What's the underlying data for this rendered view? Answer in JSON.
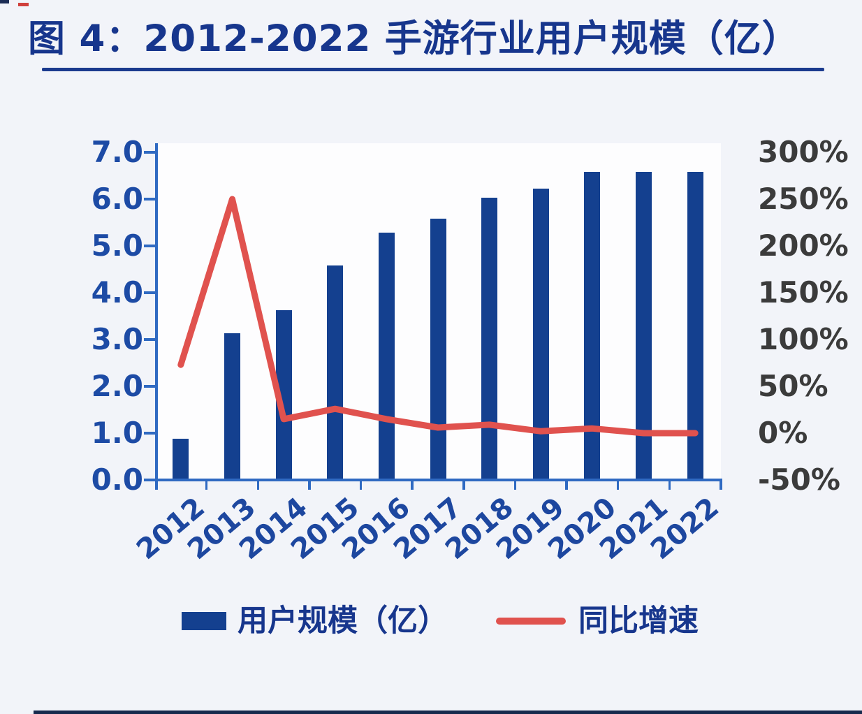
{
  "title": "图 4：2012-2022 手游行业用户规模（亿）",
  "colors": {
    "title_navy": "#17368d",
    "bar_blue": "#14408f",
    "line_red": "#e0524e",
    "axis_blue": "#2f6ac2",
    "left_label_blue": "#1d4ba5",
    "right_label_gray": "#3b3b3b",
    "page_bg": "#f2f4f9",
    "footer_bar_navy": "#162a4d"
  },
  "chart_data": {
    "type": "bar",
    "subtype": "bar-line-combo",
    "title": "图 4：2012-2022 手游行业用户规模（亿）",
    "categories": [
      "2012",
      "2013",
      "2014",
      "2015",
      "2016",
      "2017",
      "2018",
      "2019",
      "2020",
      "2021",
      "2022"
    ],
    "series": [
      {
        "name": "用户规模（亿）",
        "type": "bar",
        "axis": "left",
        "values": [
          0.85,
          3.1,
          3.6,
          4.55,
          5.25,
          5.55,
          6.0,
          6.2,
          6.55,
          6.55,
          6.55
        ]
      },
      {
        "name": "同比增速",
        "type": "line",
        "axis": "right",
        "unit": "%",
        "values": [
          73,
          250,
          15,
          26,
          15,
          6,
          9,
          2,
          5,
          0,
          0
        ]
      }
    ],
    "left_axis": {
      "min": 0,
      "max": 7,
      "ticks": [
        "0.0",
        "1.0",
        "2.0",
        "3.0",
        "4.0",
        "5.0",
        "6.0",
        "7.0"
      ]
    },
    "right_axis": {
      "min": -50,
      "max": 300,
      "ticks": [
        "-50%",
        "0%",
        "50%",
        "100%",
        "150%",
        "200%",
        "250%",
        "300%"
      ]
    },
    "grid": false,
    "legend": {
      "position": "bottom",
      "items": [
        {
          "label": "用户规模（亿）",
          "marker": "bar"
        },
        {
          "label": "同比增速",
          "marker": "line"
        }
      ]
    }
  }
}
